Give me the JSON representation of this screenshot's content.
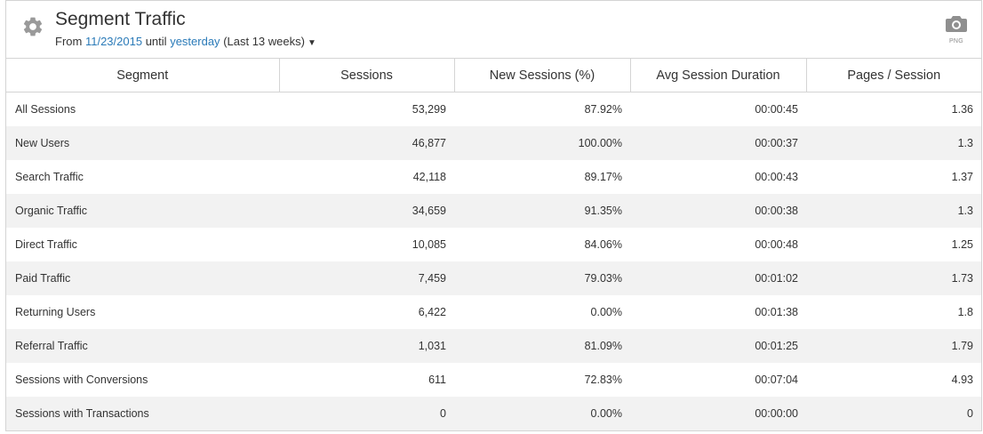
{
  "widget": {
    "title": "Segment Traffic",
    "from_label": "From",
    "start_date": "11/23/2015",
    "until_label": "until",
    "end_label": "yesterday",
    "range_note": "(Last 13 weeks)",
    "export_label": "PNG",
    "icons": {
      "settings": "gear-icon",
      "export": "camera-icon",
      "dropdown": "caret-down-icon"
    },
    "link_color": "#2a7ab8"
  },
  "table": {
    "columns": [
      "Segment",
      "Sessions",
      "New Sessions (%)",
      "Avg Session Duration",
      "Pages / Session"
    ],
    "rows": [
      [
        "All Sessions",
        "53,299",
        "87.92%",
        "00:00:45",
        "1.36"
      ],
      [
        "New Users",
        "46,877",
        "100.00%",
        "00:00:37",
        "1.3"
      ],
      [
        "Search Traffic",
        "42,118",
        "89.17%",
        "00:00:43",
        "1.37"
      ],
      [
        "Organic Traffic",
        "34,659",
        "91.35%",
        "00:00:38",
        "1.3"
      ],
      [
        "Direct Traffic",
        "10,085",
        "84.06%",
        "00:00:48",
        "1.25"
      ],
      [
        "Paid Traffic",
        "7,459",
        "79.03%",
        "00:01:02",
        "1.73"
      ],
      [
        "Returning Users",
        "6,422",
        "0.00%",
        "00:01:38",
        "1.8"
      ],
      [
        "Referral Traffic",
        "1,031",
        "81.09%",
        "00:01:25",
        "1.79"
      ],
      [
        "Sessions with Conversions",
        "611",
        "72.83%",
        "00:07:04",
        "4.93"
      ],
      [
        "Sessions with Transactions",
        "0",
        "0.00%",
        "00:00:00",
        "0"
      ]
    ]
  }
}
